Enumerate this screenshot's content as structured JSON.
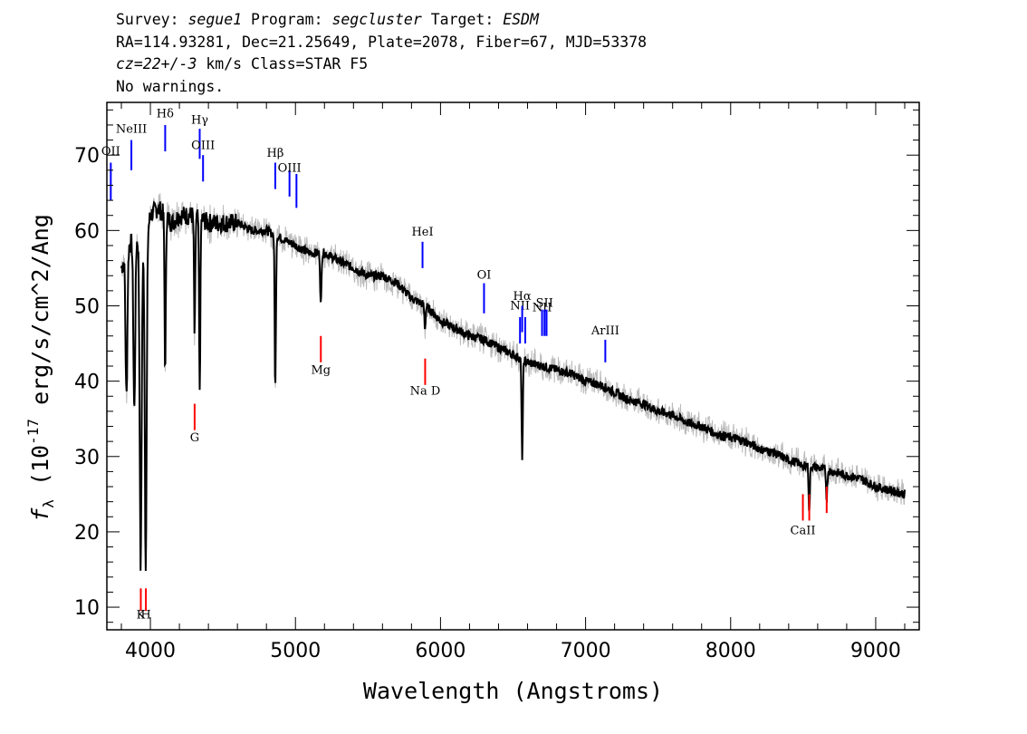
{
  "header": {
    "line1": {
      "survey_label": "Survey: ",
      "survey": "segue1",
      "program_label": " Program: ",
      "program": "segcluster",
      "target_label": " Target: ",
      "target": "ESDM"
    },
    "line2": "RA=114.93281, Dec=21.25649, Plate=2078, Fiber=67, MJD=53378",
    "line3": {
      "cz": "cz=22+/-3",
      "rest": " km/s Class=STAR F5"
    },
    "line4": "No warnings."
  },
  "chart_data": {
    "type": "line",
    "title": "",
    "xlabel": "Wavelength (Angstroms)",
    "ylabel": "f_λ (10^-17 erg/s/cm^2/Ang)",
    "xlim": [
      3700,
      9300
    ],
    "ylim": [
      7,
      77
    ],
    "xticks": [
      4000,
      5000,
      6000,
      7000,
      8000,
      9000
    ],
    "yticks": [
      10,
      20,
      30,
      40,
      50,
      60,
      70
    ],
    "grid": false,
    "series": [
      {
        "style": "black flux with grey noise envelope",
        "x": [
          3800,
          3850,
          3900,
          3950,
          4000,
          4050,
          4100,
          4150,
          4200,
          4300,
          4400,
          4500,
          4600,
          4700,
          4800,
          4900,
          5000,
          5100,
          5200,
          5300,
          5400,
          5500,
          5600,
          5700,
          5800,
          5900,
          6000,
          6100,
          6200,
          6300,
          6400,
          6500,
          6600,
          6700,
          6800,
          6900,
          7000,
          7100,
          7200,
          7300,
          7400,
          7500,
          7600,
          7700,
          7800,
          7900,
          8000,
          8100,
          8200,
          8300,
          8400,
          8500,
          8600,
          8700,
          8800,
          8900,
          9000,
          9100,
          9200
        ],
        "y": [
          55,
          58,
          59,
          57,
          62,
          63,
          62,
          61,
          62,
          62,
          61,
          61,
          61,
          60,
          60,
          59,
          58,
          57,
          57,
          56,
          55,
          54,
          54,
          53,
          51,
          50,
          48,
          47,
          46,
          45.5,
          44.5,
          43.5,
          42.5,
          42,
          41.5,
          41,
          40,
          39.5,
          38.5,
          37.5,
          37,
          36,
          35.5,
          34.5,
          34,
          33,
          32.5,
          32,
          31,
          30.5,
          29.5,
          29,
          28.5,
          28,
          27.5,
          27,
          26,
          25.5,
          25
        ]
      }
    ],
    "absorption_dips": [
      {
        "x": 3835,
        "y": 38
      },
      {
        "x": 3889,
        "y": 36
      },
      {
        "x": 3933,
        "y": 15
      },
      {
        "x": 3968,
        "y": 16
      },
      {
        "x": 4102,
        "y": 41
      },
      {
        "x": 4305,
        "y": 46
      },
      {
        "x": 4340,
        "y": 39
      },
      {
        "x": 4861,
        "y": 39
      },
      {
        "x": 5175,
        "y": 50
      },
      {
        "x": 5893,
        "y": 47
      },
      {
        "x": 6563,
        "y": 30
      },
      {
        "x": 8498,
        "y": 28
      },
      {
        "x": 8542,
        "y": 22.5
      },
      {
        "x": 8662,
        "y": 24.5
      }
    ],
    "emission_lines": [
      {
        "label": "OII",
        "x": 3727,
        "y_bottom": 64,
        "y_top": 69,
        "label_y": 70
      },
      {
        "label": "NeIII",
        "x": 3869,
        "y_bottom": 68,
        "y_top": 72,
        "label_y": 73
      },
      {
        "label": "Hδ",
        "x": 4102,
        "y_bottom": 70.5,
        "y_top": 74,
        "label_y": 75
      },
      {
        "label": "Hγ",
        "x": 4340,
        "y_bottom": 69.5,
        "y_top": 73.5,
        "label_y": 74.2
      },
      {
        "label": "OIII",
        "x": 4363,
        "y_bottom": 66.5,
        "y_top": 70,
        "label_y": 70.8
      },
      {
        "label": "Hβ",
        "x": 4861,
        "y_bottom": 65.5,
        "y_top": 69,
        "label_y": 69.8
      },
      {
        "label": "OIII",
        "x": 4959,
        "y_bottom": 64.5,
        "y_top": 68,
        "label_y": 67.8
      },
      {
        "label": "",
        "x": 5007,
        "y_bottom": 63,
        "y_top": 67.5,
        "label_y": 0
      },
      {
        "label": "HeI",
        "x": 5876,
        "y_bottom": 55,
        "y_top": 58.5,
        "label_y": 59.3
      },
      {
        "label": "OI",
        "x": 6300,
        "y_bottom": 49,
        "y_top": 53,
        "label_y": 53.6
      },
      {
        "label": "NII",
        "x": 6548,
        "y_bottom": 45,
        "y_top": 48.5,
        "label_y": 49.5
      },
      {
        "label": "Hα",
        "x": 6563,
        "y_bottom": 46.5,
        "y_top": 50,
        "label_y": 50.8
      },
      {
        "label": "",
        "x": 6584,
        "y_bottom": 45,
        "y_top": 48.5,
        "label_y": 0
      },
      {
        "label": "NII",
        "x": 6700,
        "y_bottom": 46,
        "y_top": 49.5,
        "label_y": 49.3
      },
      {
        "label": "SII",
        "x": 6717,
        "y_bottom": 46,
        "y_top": 49.5,
        "label_y": 49.9
      },
      {
        "label": "",
        "x": 6731,
        "y_bottom": 46,
        "y_top": 49.5,
        "label_y": 0
      },
      {
        "label": "ArIII",
        "x": 7136,
        "y_bottom": 42.5,
        "y_top": 45.5,
        "label_y": 46.2
      }
    ],
    "absorption_labels": [
      {
        "label": "K",
        "x": 3934,
        "y_bottom": 9.5,
        "y_top": 12.5,
        "label_y": 8.5
      },
      {
        "label": "H",
        "x": 3969,
        "y_bottom": 9.5,
        "y_top": 12.5,
        "label_y": 8.5
      },
      {
        "label": "G",
        "x": 4305,
        "y_bottom": 33.5,
        "y_top": 37,
        "label_y": 32
      },
      {
        "label": "Mg",
        "x": 5175,
        "y_bottom": 42.5,
        "y_top": 46,
        "label_y": 41
      },
      {
        "label": "Na D",
        "x": 5894,
        "y_bottom": 39.5,
        "y_top": 43,
        "label_y": 38.2
      },
      {
        "label": "CaII",
        "x": 8498,
        "y_bottom": 21.5,
        "y_top": 25,
        "label_y": 19.7
      },
      {
        "label": "",
        "x": 8542,
        "y_bottom": 21.5,
        "y_top": 25,
        "label_y": 0
      },
      {
        "label": "",
        "x": 8662,
        "y_bottom": 22.5,
        "y_top": 26,
        "label_y": 0
      }
    ],
    "colors": {
      "flux": "#000000",
      "noise": "#bbbbbb",
      "emission": "#0000ff",
      "absorption": "#ff0000"
    }
  }
}
